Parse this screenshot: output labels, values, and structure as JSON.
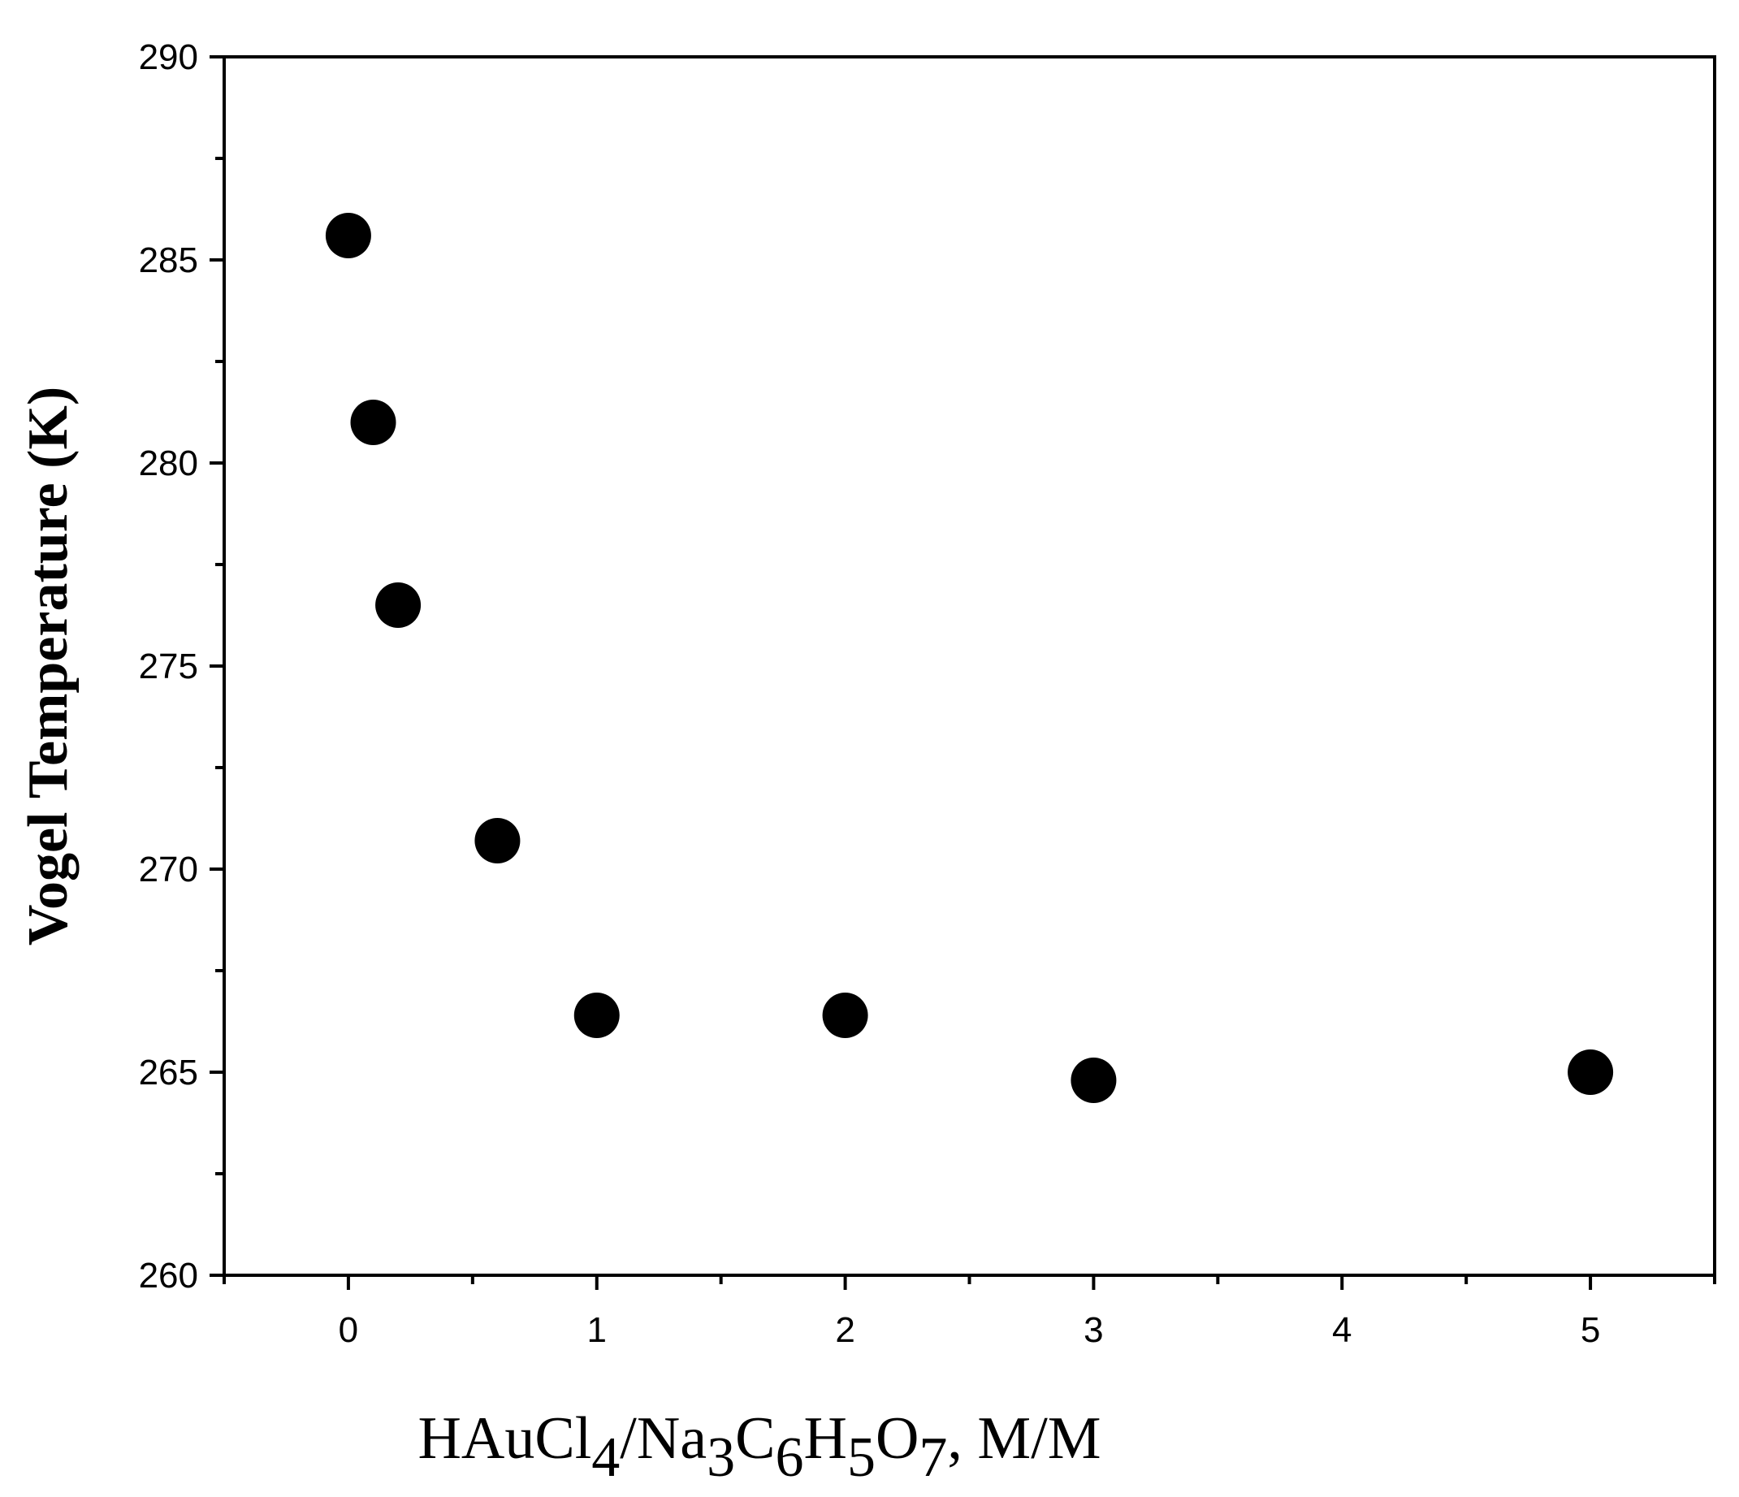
{
  "chart_data": {
    "type": "scatter",
    "title": "",
    "xlabel_parts": [
      {
        "t": "HAuCl",
        "sub": false
      },
      {
        "t": "4",
        "sub": true
      },
      {
        "t": "/Na",
        "sub": false
      },
      {
        "t": "3",
        "sub": true
      },
      {
        "t": "C",
        "sub": false
      },
      {
        "t": "6",
        "sub": true
      },
      {
        "t": "H",
        "sub": false
      },
      {
        "t": "5",
        "sub": true
      },
      {
        "t": "O",
        "sub": false
      },
      {
        "t": "7",
        "sub": true
      },
      {
        "t": ", M/M",
        "sub": false
      }
    ],
    "ylabel": "Vogel Temperature (K)",
    "xlim": [
      -0.5,
      5.5
    ],
    "ylim": [
      260,
      290
    ],
    "xticks": [
      0,
      1,
      2,
      3,
      4,
      5
    ],
    "xminor": [
      -0.5,
      0.5,
      1.5,
      2.5,
      3.5,
      4.5,
      5.5
    ],
    "yticks": [
      260,
      265,
      270,
      275,
      280,
      285,
      290
    ],
    "yminor": [
      262.5,
      267.5,
      272.5,
      277.5,
      282.5,
      287.5
    ],
    "grid": false,
    "legend": "none",
    "marker_color": "#000000",
    "series": [
      {
        "x": [
          0,
          0.1,
          0.2,
          0.6,
          1,
          2,
          3,
          5
        ],
        "y": [
          285.6,
          281.0,
          276.5,
          270.7,
          266.4,
          266.4,
          264.8,
          265.0
        ]
      }
    ]
  }
}
